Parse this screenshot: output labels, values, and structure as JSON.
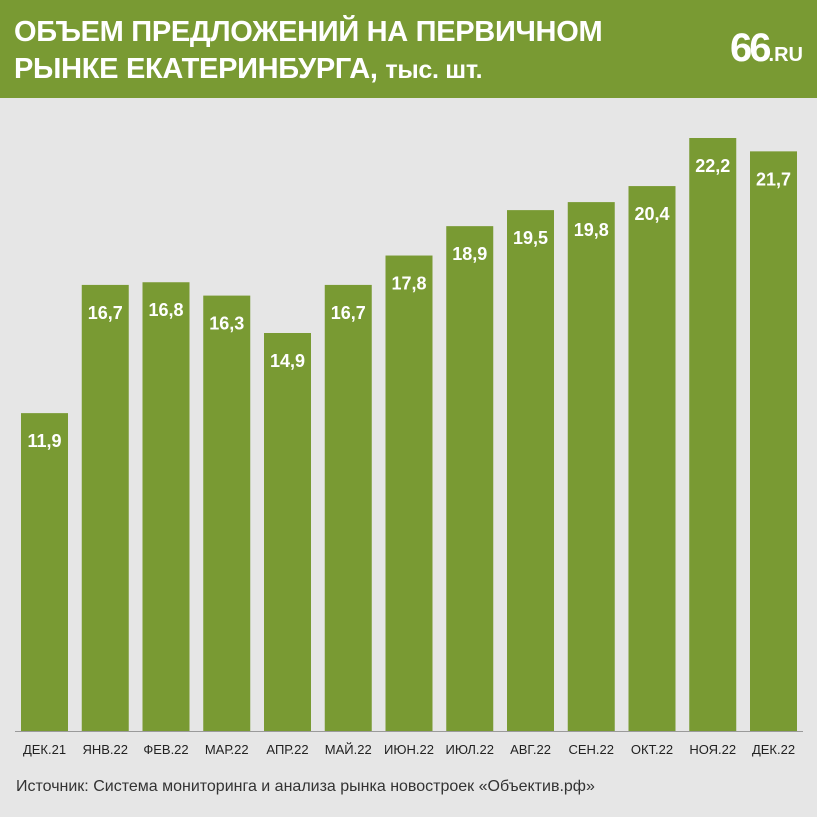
{
  "header": {
    "title_line1": "ОБЪЕМ ПРЕДЛОЖЕНИЙ НА ПЕРВИЧНОМ",
    "title_line2": "РЫНКЕ ЕКАТЕРИНБУРГА,",
    "title_unit": "тыс. шт.",
    "logo_number": "66",
    "logo_domain": ".RU"
  },
  "colors": {
    "accent": "#799a33",
    "background": "#e6e6e6",
    "label": "#ffffff",
    "axis_text": "#222222"
  },
  "chart_data": {
    "type": "bar",
    "title": "ОБЪЕМ ПРЕДЛОЖЕНИЙ НА ПЕРВИЧНОМ РЫНКЕ ЕКАТЕРИНБУРГА, тыс. шт.",
    "categories": [
      "ДЕК.21",
      "ЯНВ.22",
      "ФЕВ.22",
      "МАР.22",
      "АПР.22",
      "МАЙ.22",
      "ИЮН.22",
      "ИЮЛ.22",
      "АВГ.22",
      "СЕН.22",
      "ОКТ.22",
      "НОЯ.22",
      "ДЕК.22"
    ],
    "values": [
      11.9,
      16.7,
      16.8,
      16.3,
      14.9,
      16.7,
      17.8,
      18.9,
      19.5,
      19.8,
      20.4,
      22.2,
      21.7
    ],
    "value_labels": [
      "11,9",
      "16,7",
      "16,8",
      "16,3",
      "14,9",
      "16,7",
      "17,8",
      "18,9",
      "19,5",
      "19,8",
      "20,4",
      "22,2",
      "21,7"
    ],
    "ylim": [
      0,
      22.2
    ],
    "grid": false,
    "legend": "none"
  },
  "footer": {
    "source": "Источник: Система мониторинга и анализа рынка новостроек «Объектив.рф»"
  }
}
